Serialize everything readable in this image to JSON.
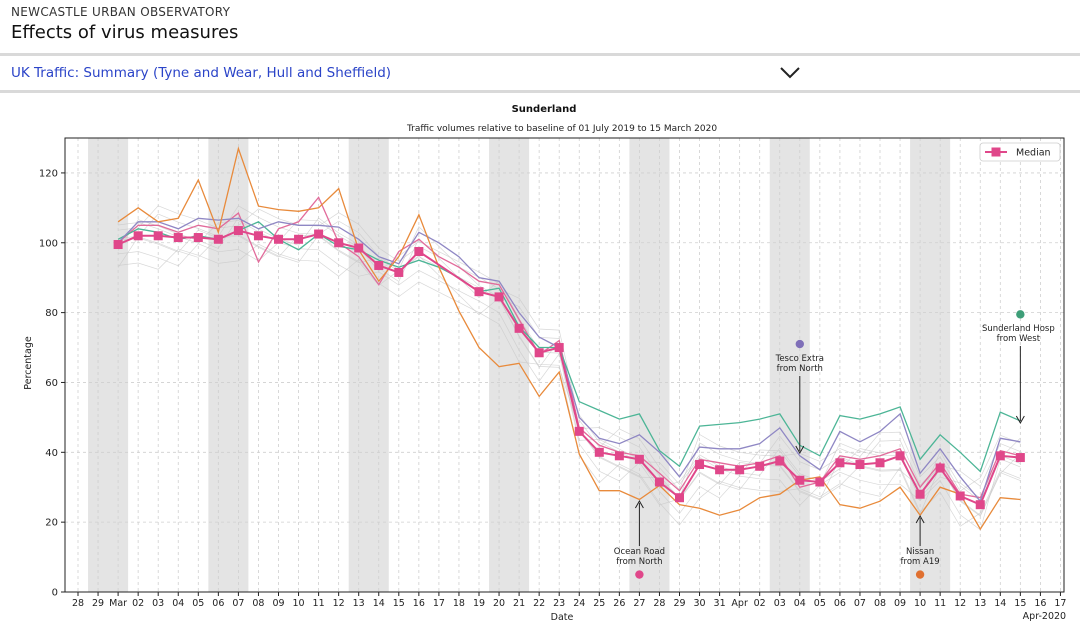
{
  "header": {
    "org": "NEWCASTLE URBAN OBSERVATORY",
    "title": "Effects of virus measures"
  },
  "selector": {
    "label": "UK Traffic: Summary (Tyne and Wear, Hull and Sheffield)",
    "icon": "chevron-down-icon"
  },
  "colors": {
    "median": "#e0478a",
    "orange": "#e88a3b",
    "purple": "#8f87c4",
    "teal": "#4cb596",
    "pink": "#e26b9b",
    "shade": "#e4e4e4",
    "link": "#2b44c8"
  },
  "chart_data": {
    "type": "line",
    "title": "Sunderland",
    "subtitle": "Traffic volumes relative to baseline of 01 July 2019 to 15 March 2020",
    "xlabel": "Date",
    "ylabel": "Percentage",
    "ylim": [
      0,
      130
    ],
    "yticks": [
      0,
      20,
      40,
      60,
      80,
      100,
      120
    ],
    "grid": true,
    "legend": {
      "position": "top-right",
      "entries": [
        "Median"
      ]
    },
    "xtick_labels": [
      "28",
      "29",
      "Mar",
      "02",
      "03",
      "04",
      "05",
      "06",
      "07",
      "08",
      "09",
      "10",
      "11",
      "12",
      "13",
      "14",
      "15",
      "16",
      "17",
      "18",
      "19",
      "20",
      "21",
      "22",
      "23",
      "24",
      "25",
      "26",
      "27",
      "28",
      "29",
      "30",
      "31",
      "Apr",
      "02",
      "03",
      "04",
      "05",
      "06",
      "07",
      "08",
      "09",
      "10",
      "11",
      "12",
      "13",
      "14",
      "15",
      "16",
      "17"
    ],
    "xtick_extra": "Apr-2020",
    "x_start": "2020-02-28",
    "weekend_shading": [
      [
        1,
        2
      ],
      [
        7,
        8
      ],
      [
        14,
        15
      ],
      [
        21,
        22
      ],
      [
        28,
        29
      ],
      [
        35,
        36
      ],
      [
        42,
        43
      ]
    ],
    "series": [
      {
        "name": "Median",
        "color": "#e0478a",
        "start": 2,
        "values": [
          99.5,
          102,
          102,
          101.5,
          101.5,
          101,
          103.5,
          102,
          101,
          101,
          102.5,
          100,
          98.5,
          93.5,
          91.5,
          97.5,
          null,
          null,
          86,
          84.5,
          75.5,
          68.5,
          70,
          46,
          40,
          39,
          38,
          31.5,
          27,
          36.5,
          35,
          35,
          36,
          37.5,
          32,
          31.5,
          37,
          36.5,
          37,
          39,
          28,
          35.5,
          27.5,
          25,
          39,
          38.5
        ]
      },
      {
        "name": "",
        "color": "#e88a3b",
        "start": 2,
        "values": [
          106,
          110,
          106,
          107,
          118,
          103,
          127,
          110.5,
          109.5,
          109,
          110,
          115.5,
          98,
          89,
          96,
          108,
          93,
          80.5,
          70,
          64.5,
          65.5,
          56,
          63,
          39.5,
          29,
          29,
          26.5,
          30.5,
          25,
          24,
          22,
          23.5,
          27,
          28,
          32,
          33,
          25,
          24,
          26,
          30,
          22,
          30,
          28,
          18,
          27,
          26.5
        ]
      },
      {
        "name": "",
        "color": "#8f87c4",
        "start": 2,
        "values": [
          100,
          106,
          106,
          104,
          107,
          106.5,
          107,
          104,
          106,
          105,
          105,
          104.5,
          101,
          96,
          94,
          103,
          100,
          96,
          90,
          89,
          80,
          73,
          70,
          50,
          44,
          42.5,
          45,
          40,
          33,
          41.5,
          41,
          41,
          42.5,
          47,
          39,
          35,
          46,
          43,
          46,
          51,
          34,
          41,
          33,
          26,
          44,
          43
        ]
      },
      {
        "name": "",
        "color": "#4cb596",
        "start": 2,
        "values": [
          101,
          104,
          103,
          101,
          102,
          101,
          103.5,
          106,
          101,
          98,
          102.5,
          99,
          98,
          95,
          93,
          95,
          93,
          90,
          86,
          87,
          76,
          70,
          70,
          54.5,
          52,
          49.5,
          51,
          40.5,
          36,
          47.5,
          48,
          48.5,
          49.5,
          51,
          42,
          39,
          50.5,
          49.5,
          51,
          53,
          38,
          45,
          40,
          34.5,
          51.5,
          49
        ]
      },
      {
        "name": "",
        "color": "#e26b9b",
        "start": 2,
        "values": [
          100,
          105,
          105,
          103,
          105,
          104,
          108.5,
          94.5,
          104,
          106,
          113,
          100,
          96,
          88,
          97.5,
          101,
          96,
          93,
          89,
          88,
          78,
          68,
          72,
          47,
          42,
          40,
          39,
          34,
          29,
          38,
          37,
          36,
          37,
          39,
          30,
          31.5,
          39,
          38,
          39,
          41,
          30,
          37,
          28,
          27,
          40.5,
          39
        ]
      }
    ],
    "annotations": [
      {
        "text": "Ocean Road",
        "text2": "from North",
        "x": 28,
        "dot_y": 5,
        "color": "#e0478a"
      },
      {
        "text": "Tesco Extra",
        "text2": "from North",
        "x": 36,
        "dot_y": 71,
        "color": "#7f6fb8"
      },
      {
        "text": "Nissan",
        "text2": "from A19",
        "x": 42,
        "dot_y": 5,
        "color": "#e07030"
      },
      {
        "text": "Sunderland Hosp",
        "text2": "from West",
        "x": 47,
        "dot_y": 79.5,
        "color": "#3e9e78"
      }
    ]
  }
}
